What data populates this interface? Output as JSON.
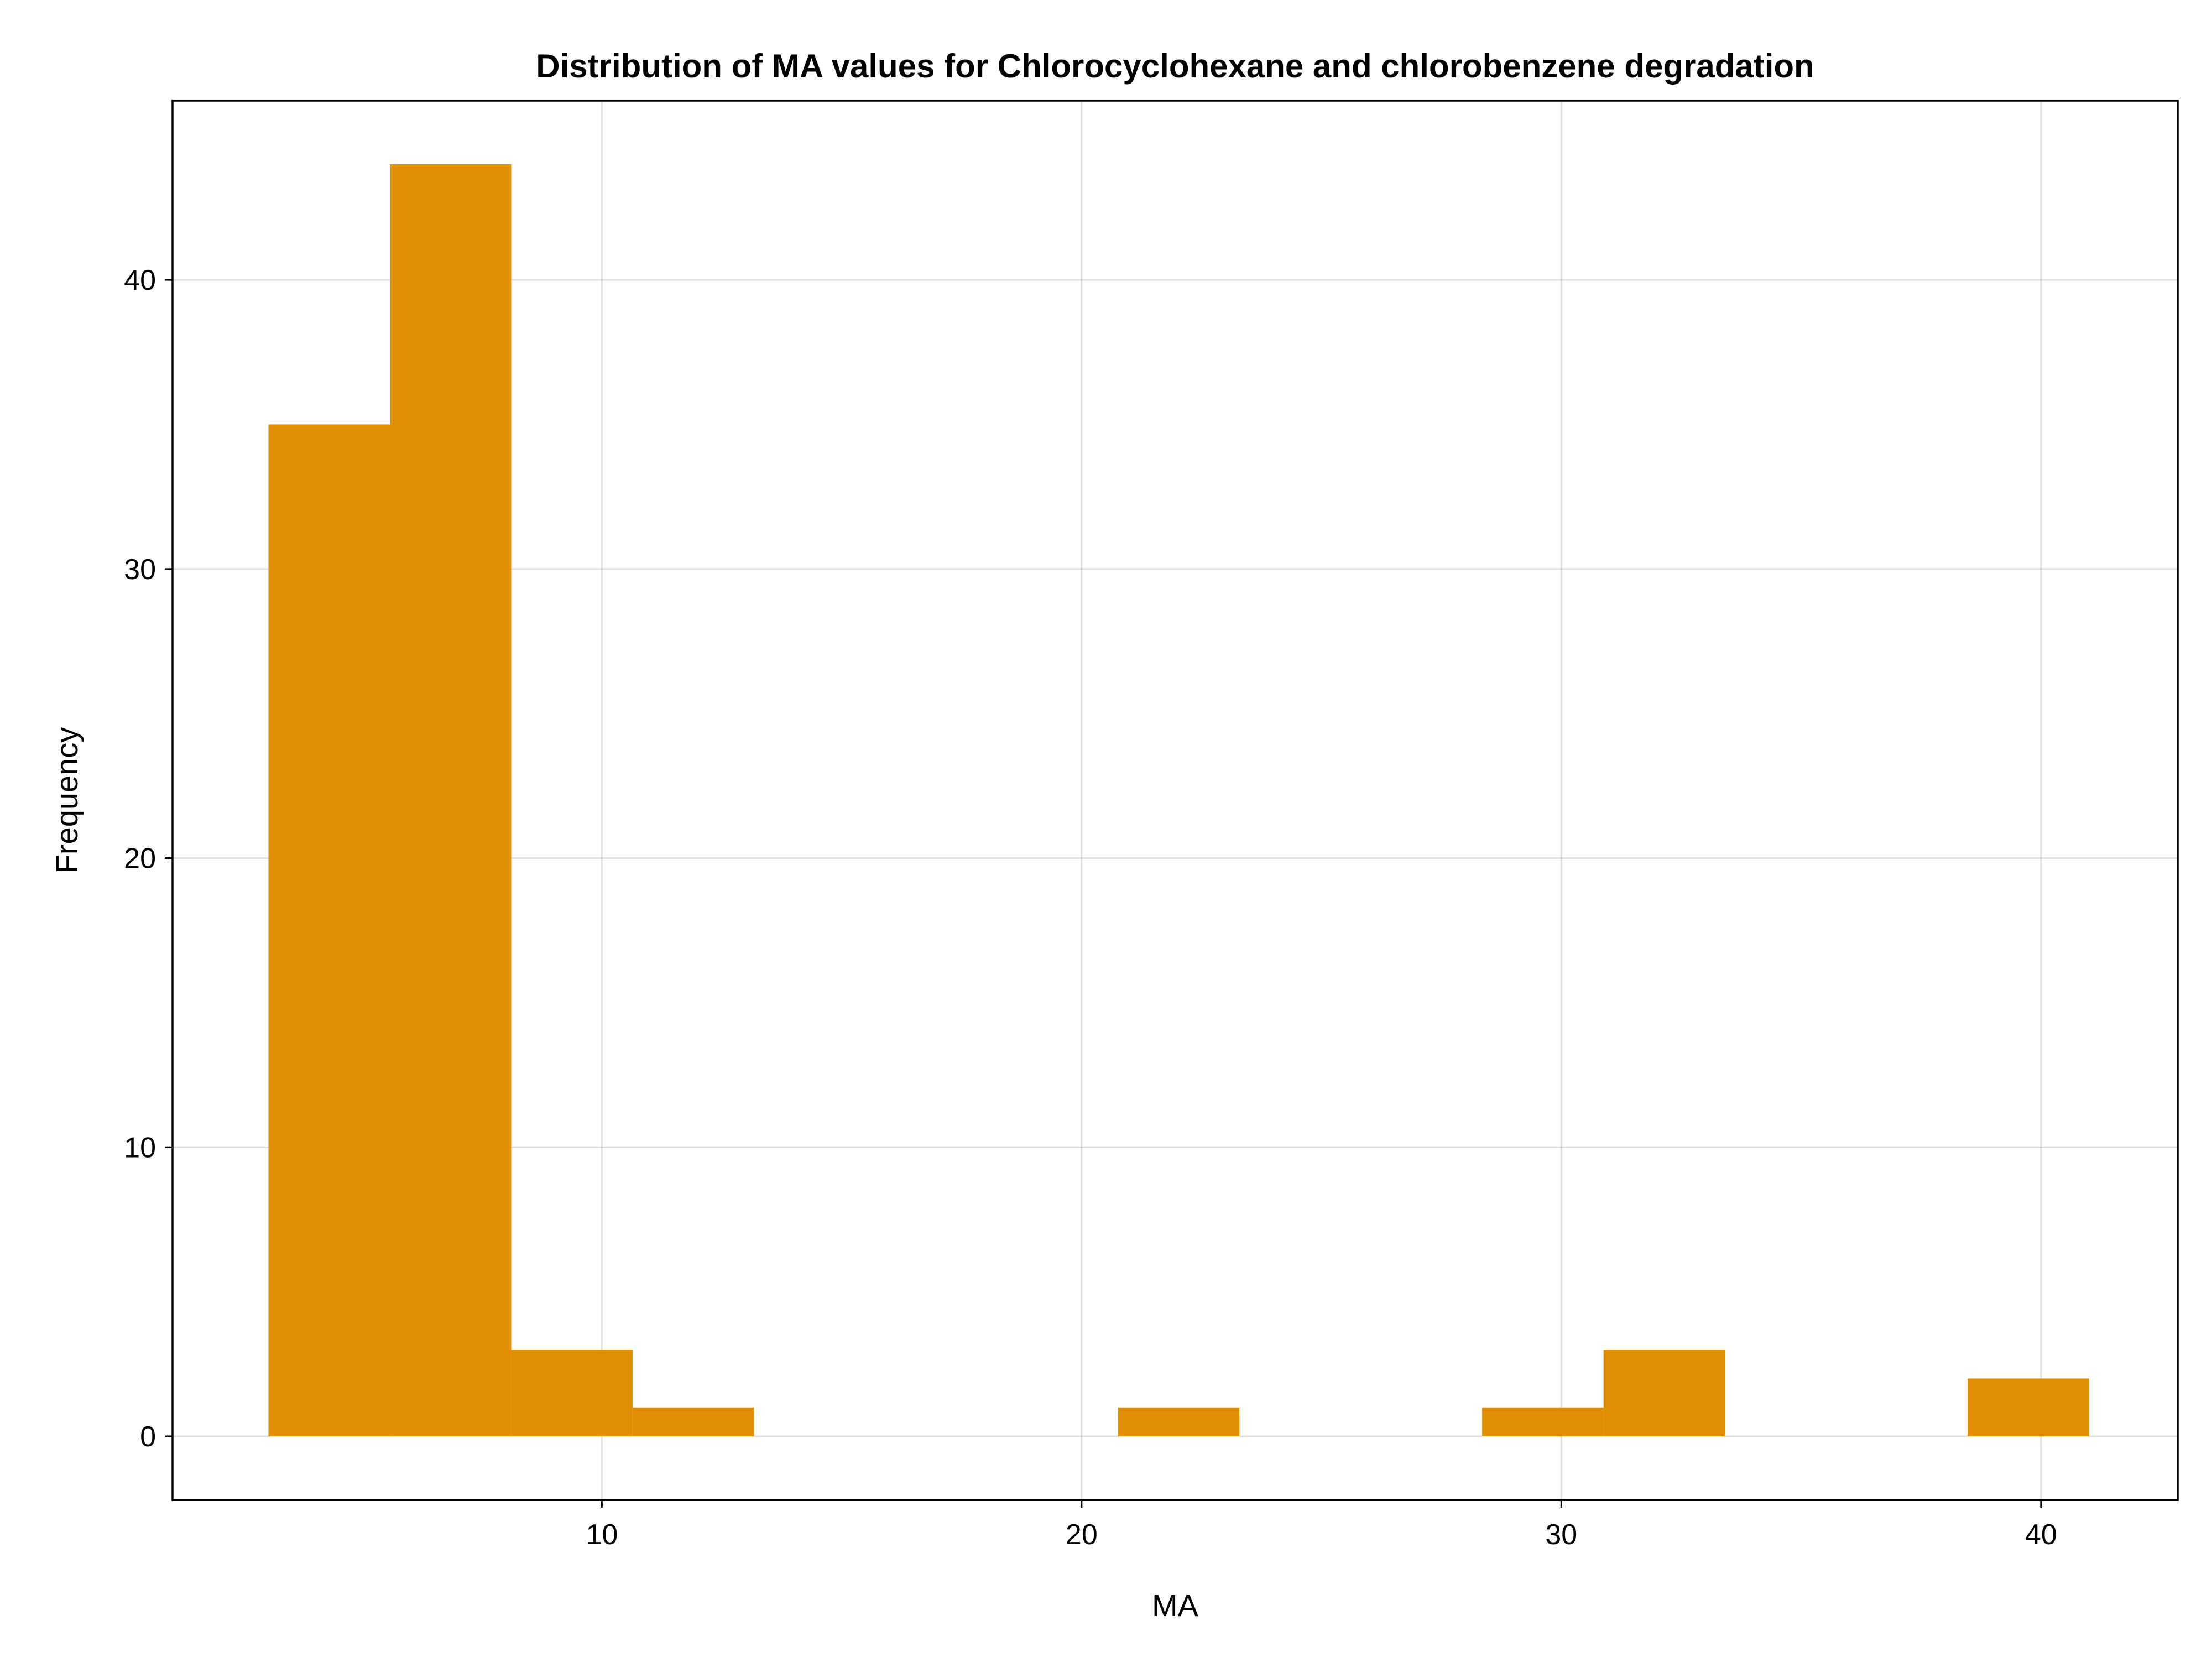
{
  "chart_data": {
    "type": "bar",
    "title": "Distribution of MA values for Chlorocyclohexane and chlorobenzene degradation",
    "xlabel": "MA",
    "ylabel": "Frequency",
    "xlim": [
      1.05,
      42.85
    ],
    "ylim": [
      -2.2,
      46.2
    ],
    "x_ticks": [
      10,
      20,
      30,
      40
    ],
    "y_ticks": [
      0,
      10,
      20,
      30,
      40
    ],
    "grid": true,
    "bar_color": "#e08f04",
    "bins": [
      {
        "x0": 3.05,
        "x1": 5.58,
        "count": 35
      },
      {
        "x0": 5.58,
        "x1": 8.11,
        "count": 44
      },
      {
        "x0": 8.11,
        "x1": 10.64,
        "count": 3
      },
      {
        "x0": 10.64,
        "x1": 13.17,
        "count": 1
      },
      {
        "x0": 13.17,
        "x1": 15.7,
        "count": 0
      },
      {
        "x0": 15.7,
        "x1": 18.23,
        "count": 0
      },
      {
        "x0": 18.23,
        "x1": 20.76,
        "count": 0
      },
      {
        "x0": 20.76,
        "x1": 23.29,
        "count": 1
      },
      {
        "x0": 23.29,
        "x1": 25.82,
        "count": 0
      },
      {
        "x0": 25.82,
        "x1": 28.35,
        "count": 0
      },
      {
        "x0": 28.35,
        "x1": 30.88,
        "count": 1
      },
      {
        "x0": 30.88,
        "x1": 33.41,
        "count": 3
      },
      {
        "x0": 33.41,
        "x1": 35.94,
        "count": 0
      },
      {
        "x0": 35.94,
        "x1": 38.47,
        "count": 0
      },
      {
        "x0": 38.47,
        "x1": 41.0,
        "count": 2
      }
    ]
  }
}
